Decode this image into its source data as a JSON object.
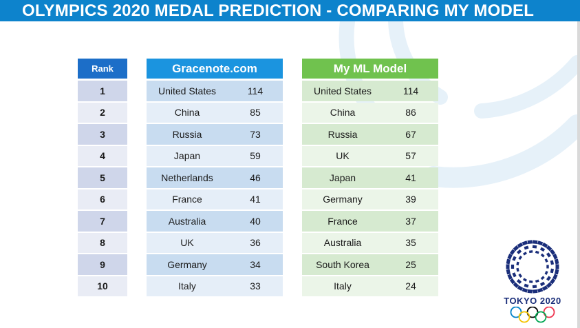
{
  "title": "OLYMPICS 2020 MEDAL PREDICTION - COMPARING MY MODEL",
  "rank_header": "Rank",
  "ranks": [
    "1",
    "2",
    "3",
    "4",
    "5",
    "6",
    "7",
    "8",
    "9",
    "10"
  ],
  "gracenote": {
    "header": "Gracenote.com",
    "rows": [
      {
        "country": "United States",
        "medals": "114"
      },
      {
        "country": "China",
        "medals": "85"
      },
      {
        "country": "Russia",
        "medals": "73"
      },
      {
        "country": "Japan",
        "medals": "59"
      },
      {
        "country": "Netherlands",
        "medals": "46"
      },
      {
        "country": "France",
        "medals": "41"
      },
      {
        "country": "Australia",
        "medals": "40"
      },
      {
        "country": "UK",
        "medals": "36"
      },
      {
        "country": "Germany",
        "medals": "34"
      },
      {
        "country": "Italy",
        "medals": "33"
      }
    ]
  },
  "ml_model": {
    "header": "My ML Model",
    "rows": [
      {
        "country": "United States",
        "medals": "114"
      },
      {
        "country": "China",
        "medals": "86"
      },
      {
        "country": "Russia",
        "medals": "67"
      },
      {
        "country": "UK",
        "medals": "57"
      },
      {
        "country": "Japan",
        "medals": "41"
      },
      {
        "country": "Germany",
        "medals": "39"
      },
      {
        "country": "France",
        "medals": "37"
      },
      {
        "country": "Australia",
        "medals": "35"
      },
      {
        "country": "South Korea",
        "medals": "25"
      },
      {
        "country": "Italy",
        "medals": "24"
      }
    ]
  },
  "logo": {
    "text": "TOKYO 2020",
    "emblem_color": "#1a2e7a",
    "ring_colors": [
      "#0081c8",
      "#f4c300",
      "#000000",
      "#00a651",
      "#ee334e"
    ]
  },
  "colors": {
    "title_bar": "#0d83cc",
    "rank_header": "#1c6ec8",
    "gracenote_header": "#1b94df",
    "ml_header": "#70c24e"
  }
}
